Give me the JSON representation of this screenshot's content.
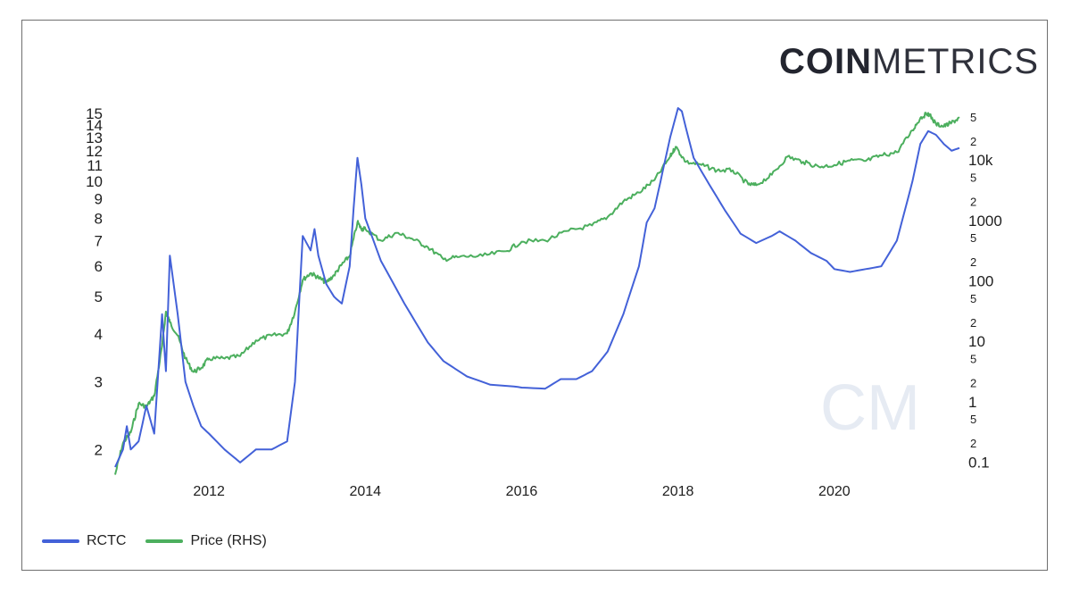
{
  "brand": {
    "logo_bold": "COIN",
    "logo_light": "METRICS",
    "watermark": "CM"
  },
  "colors": {
    "rctc": "#4361d8",
    "price": "#4caf5e",
    "text": "#1e1e1e",
    "frame": "#6f6f6f"
  },
  "chart_data": {
    "type": "line",
    "title": "",
    "xlabel": "",
    "ylabel": "",
    "x_ticks": [
      "2012",
      "2014",
      "2016",
      "2018",
      "2020"
    ],
    "x_range": [
      2010.8,
      2021.6
    ],
    "left_axis": {
      "scale": "log",
      "range": [
        1.8,
        15.5
      ],
      "ticks": [
        "2",
        "3",
        "4",
        "5",
        "6",
        "7",
        "8",
        "9",
        "10",
        "11",
        "12",
        "13",
        "14",
        "15"
      ]
    },
    "right_axis": {
      "scale": "log",
      "range": [
        0.08,
        70000
      ],
      "major_ticks": [
        "0.1",
        "1",
        "10",
        "100",
        "1000",
        "10k"
      ],
      "minor_ticks": [
        "2",
        "5",
        "2",
        "5",
        "2",
        "5",
        "2",
        "5",
        "2",
        "5",
        "2",
        "5"
      ]
    },
    "legend_position": "bottom-left",
    "grid": false,
    "series": [
      {
        "name": "RCTC",
        "axis": "left",
        "x": [
          2010.8,
          2010.9,
          2010.95,
          2011.0,
          2011.1,
          2011.2,
          2011.3,
          2011.4,
          2011.45,
          2011.5,
          2011.6,
          2011.7,
          2011.8,
          2011.9,
          2012.0,
          2012.2,
          2012.4,
          2012.6,
          2012.8,
          2013.0,
          2013.1,
          2013.2,
          2013.3,
          2013.35,
          2013.4,
          2013.5,
          2013.6,
          2013.7,
          2013.8,
          2013.85,
          2013.9,
          2013.95,
          2014.0,
          2014.2,
          2014.5,
          2014.8,
          2015.0,
          2015.3,
          2015.6,
          2015.9,
          2016.0,
          2016.3,
          2016.5,
          2016.7,
          2016.9,
          2017.1,
          2017.3,
          2017.5,
          2017.6,
          2017.7,
          2017.8,
          2017.9,
          2018.0,
          2018.05,
          2018.1,
          2018.2,
          2018.4,
          2018.6,
          2018.8,
          2019.0,
          2019.2,
          2019.3,
          2019.5,
          2019.7,
          2019.9,
          2020.0,
          2020.2,
          2020.4,
          2020.6,
          2020.8,
          2021.0,
          2021.1,
          2021.2,
          2021.3,
          2021.4,
          2021.5,
          2021.6
        ],
        "y": [
          1.8,
          2.0,
          2.3,
          2.0,
          2.1,
          2.6,
          2.2,
          4.5,
          3.2,
          6.4,
          4.5,
          3.0,
          2.6,
          2.3,
          2.2,
          2.0,
          1.85,
          2.0,
          2.0,
          2.1,
          3.0,
          7.2,
          6.6,
          7.5,
          6.4,
          5.4,
          5.0,
          4.8,
          6.0,
          8.5,
          11.5,
          9.8,
          8.0,
          6.2,
          4.8,
          3.8,
          3.4,
          3.1,
          2.95,
          2.92,
          2.9,
          2.88,
          3.05,
          3.05,
          3.2,
          3.6,
          4.5,
          6.0,
          7.8,
          8.5,
          10.5,
          13.0,
          15.5,
          15.2,
          13.8,
          11.5,
          9.8,
          8.4,
          7.3,
          6.9,
          7.2,
          7.4,
          7.0,
          6.5,
          6.2,
          5.9,
          5.8,
          5.9,
          6.0,
          7.0,
          10.0,
          12.5,
          13.5,
          13.2,
          12.5,
          12.0,
          12.2
        ]
      },
      {
        "name": "Price (RHS)",
        "axis": "right",
        "x": [
          2010.8,
          2010.9,
          2011.0,
          2011.1,
          2011.2,
          2011.3,
          2011.4,
          2011.45,
          2011.5,
          2011.6,
          2011.7,
          2011.8,
          2011.9,
          2012.0,
          2012.2,
          2012.4,
          2012.6,
          2012.8,
          2013.0,
          2013.1,
          2013.2,
          2013.3,
          2013.4,
          2013.5,
          2013.6,
          2013.7,
          2013.8,
          2013.9,
          2013.95,
          2014.0,
          2014.2,
          2014.4,
          2014.6,
          2014.8,
          2015.0,
          2015.2,
          2015.5,
          2015.8,
          2016.0,
          2016.3,
          2016.6,
          2016.9,
          2017.1,
          2017.3,
          2017.5,
          2017.7,
          2017.9,
          2017.97,
          2018.1,
          2018.3,
          2018.5,
          2018.7,
          2018.9,
          2019.0,
          2019.2,
          2019.4,
          2019.6,
          2019.8,
          2020.0,
          2020.2,
          2020.4,
          2020.6,
          2020.8,
          2021.0,
          2021.1,
          2021.2,
          2021.3,
          2021.4,
          2021.5,
          2021.6
        ],
        "y": [
          0.06,
          0.2,
          0.3,
          0.9,
          0.8,
          1.2,
          8.0,
          30,
          20,
          12,
          5,
          3,
          3.5,
          5,
          5,
          5.5,
          10,
          12,
          13,
          30,
          100,
          130,
          110,
          90,
          120,
          180,
          250,
          900,
          700,
          700,
          450,
          600,
          480,
          350,
          220,
          240,
          250,
          300,
          430,
          450,
          650,
          800,
          1100,
          2000,
          2800,
          4500,
          11000,
          16000,
          9000,
          8000,
          6500,
          6500,
          3800,
          3700,
          5500,
          11000,
          9000,
          7500,
          8000,
          9500,
          9300,
          11500,
          13000,
          30000,
          48000,
          58000,
          38000,
          35000,
          40000,
          48000
        ]
      }
    ]
  }
}
